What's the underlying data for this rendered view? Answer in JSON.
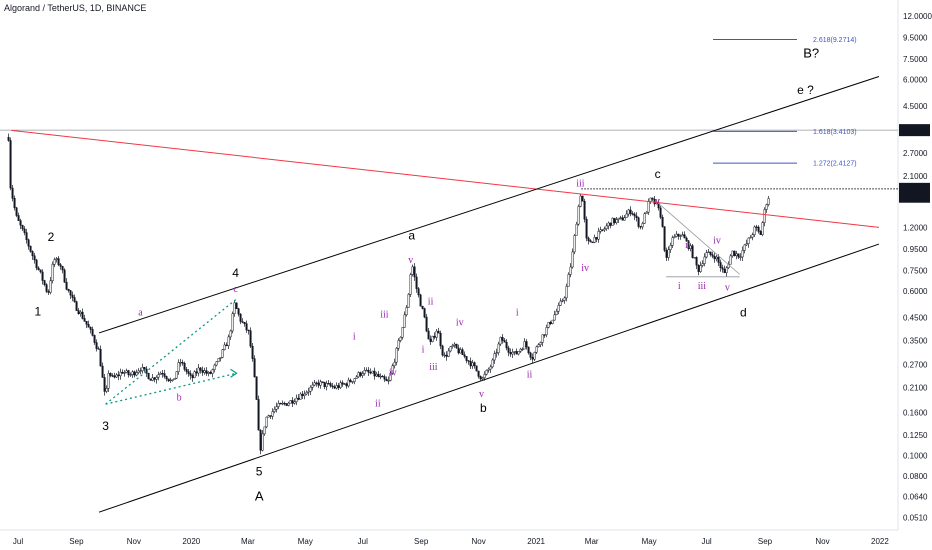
{
  "title": "Algorand / TetherUS, 1D, BINANCE",
  "chart_data": {
    "type": "candlestick",
    "symbol": "Algorand / TetherUS",
    "interval": "1D",
    "exchange": "BINANCE",
    "scale": "log",
    "ylim": [
      0.048,
      13.5
    ],
    "price_ticks": [
      "12.0000",
      "9.5000",
      "7.5000",
      "6.0000",
      "4.5000",
      "3.4569",
      "2.7000",
      "2.1000",
      "1.8243",
      "1.6745",
      "1.2000",
      "0.9500",
      "0.7500",
      "0.6000",
      "0.4500",
      "0.3500",
      "0.2700",
      "0.2100",
      "0.1600",
      "0.1250",
      "0.1000",
      "0.0800",
      "0.0640",
      "0.0510"
    ],
    "highlighted_prices": [
      {
        "label": "3.4569",
        "value": 3.4569
      },
      {
        "label": "1.8243",
        "value": 1.8243
      },
      {
        "label": "1.6745",
        "value": 1.6745
      }
    ],
    "time_ticks": [
      {
        "label": "Jul",
        "date": "2019-07-01"
      },
      {
        "label": "Sep",
        "date": "2019-09-01"
      },
      {
        "label": "Nov",
        "date": "2019-11-01"
      },
      {
        "label": "2020",
        "date": "2020-01-01"
      },
      {
        "label": "Mar",
        "date": "2020-03-01"
      },
      {
        "label": "May",
        "date": "2020-05-01"
      },
      {
        "label": "Jul",
        "date": "2020-07-01"
      },
      {
        "label": "Sep",
        "date": "2020-09-01"
      },
      {
        "label": "Nov",
        "date": "2020-11-01"
      },
      {
        "label": "2021",
        "date": "2021-01-01"
      },
      {
        "label": "Mar",
        "date": "2021-03-01"
      },
      {
        "label": "May",
        "date": "2021-05-01"
      },
      {
        "label": "Jul",
        "date": "2021-07-01"
      },
      {
        "label": "Sep",
        "date": "2021-09-01"
      },
      {
        "label": "Nov",
        "date": "2021-11-01"
      },
      {
        "label": "2022",
        "date": "2022-01-01"
      }
    ],
    "price_path": [
      [
        "2019-06-21",
        3.2
      ],
      [
        "2019-06-22",
        2.0
      ],
      [
        "2019-06-29",
        1.35
      ],
      [
        "2019-07-08",
        1.1
      ],
      [
        "2019-07-18",
        0.85
      ],
      [
        "2019-07-26",
        0.7
      ],
      [
        "2019-08-02",
        0.58
      ],
      [
        "2019-08-08",
        0.85
      ],
      [
        "2019-08-15",
        0.8
      ],
      [
        "2019-08-22",
        0.62
      ],
      [
        "2019-08-30",
        0.52
      ],
      [
        "2019-09-08",
        0.45
      ],
      [
        "2019-09-18",
        0.37
      ],
      [
        "2019-09-25",
        0.31
      ],
      [
        "2019-10-02",
        0.18
      ],
      [
        "2019-10-05",
        0.25
      ],
      [
        "2019-10-10",
        0.23
      ],
      [
        "2019-10-20",
        0.25
      ],
      [
        "2019-10-28",
        0.24
      ],
      [
        "2019-11-08",
        0.26
      ],
      [
        "2019-11-20",
        0.23
      ],
      [
        "2019-12-01",
        0.25
      ],
      [
        "2019-12-12",
        0.22
      ],
      [
        "2019-12-20",
        0.28
      ],
      [
        "2020-01-01",
        0.23
      ],
      [
        "2020-01-10",
        0.26
      ],
      [
        "2020-01-20",
        0.24
      ],
      [
        "2020-01-30",
        0.28
      ],
      [
        "2020-02-10",
        0.36
      ],
      [
        "2020-02-16",
        0.52
      ],
      [
        "2020-02-22",
        0.44
      ],
      [
        "2020-03-02",
        0.38
      ],
      [
        "2020-03-07",
        0.26
      ],
      [
        "2020-03-12",
        0.15
      ],
      [
        "2020-03-13",
        0.1
      ],
      [
        "2020-03-20",
        0.15
      ],
      [
        "2020-04-01",
        0.17
      ],
      [
        "2020-04-15",
        0.18
      ],
      [
        "2020-05-01",
        0.2
      ],
      [
        "2020-05-15",
        0.22
      ],
      [
        "2020-06-01",
        0.21
      ],
      [
        "2020-06-15",
        0.22
      ],
      [
        "2020-07-01",
        0.25
      ],
      [
        "2020-07-15",
        0.24
      ],
      [
        "2020-07-28",
        0.22
      ],
      [
        "2020-08-05",
        0.3
      ],
      [
        "2020-08-12",
        0.4
      ],
      [
        "2020-08-18",
        0.55
      ],
      [
        "2020-08-22",
        0.82
      ],
      [
        "2020-08-27",
        0.62
      ],
      [
        "2020-09-05",
        0.44
      ],
      [
        "2020-09-10",
        0.33
      ],
      [
        "2020-09-18",
        0.4
      ],
      [
        "2020-09-25",
        0.29
      ],
      [
        "2020-10-05",
        0.33
      ],
      [
        "2020-10-15",
        0.3
      ],
      [
        "2020-10-25",
        0.27
      ],
      [
        "2020-11-05",
        0.23
      ],
      [
        "2020-11-15",
        0.27
      ],
      [
        "2020-11-25",
        0.36
      ],
      [
        "2020-12-02",
        0.32
      ],
      [
        "2020-12-10",
        0.3
      ],
      [
        "2020-12-20",
        0.34
      ],
      [
        "2020-12-28",
        0.29
      ],
      [
        "2021-01-05",
        0.35
      ],
      [
        "2021-01-15",
        0.42
      ],
      [
        "2021-01-25",
        0.5
      ],
      [
        "2021-02-01",
        0.58
      ],
      [
        "2021-02-08",
        0.85
      ],
      [
        "2021-02-14",
        1.4
      ],
      [
        "2021-02-18",
        1.82
      ],
      [
        "2021-02-24",
        1.0
      ],
      [
        "2021-03-02",
        1.05
      ],
      [
        "2021-03-12",
        1.15
      ],
      [
        "2021-03-22",
        1.28
      ],
      [
        "2021-04-01",
        1.3
      ],
      [
        "2021-04-12",
        1.45
      ],
      [
        "2021-04-22",
        1.2
      ],
      [
        "2021-05-02",
        1.62
      ],
      [
        "2021-05-08",
        1.55
      ],
      [
        "2021-05-14",
        1.35
      ],
      [
        "2021-05-19",
        0.82
      ],
      [
        "2021-05-25",
        1.05
      ],
      [
        "2021-06-04",
        1.12
      ],
      [
        "2021-06-14",
        0.95
      ],
      [
        "2021-06-22",
        0.75
      ],
      [
        "2021-06-30",
        0.9
      ],
      [
        "2021-07-10",
        0.88
      ],
      [
        "2021-07-20",
        0.72
      ],
      [
        "2021-07-28",
        0.92
      ],
      [
        "2021-08-05",
        0.88
      ],
      [
        "2021-08-15",
        1.05
      ],
      [
        "2021-08-22",
        1.2
      ],
      [
        "2021-08-27",
        1.1
      ],
      [
        "2021-09-02",
        1.55
      ],
      [
        "2021-09-05",
        1.68
      ]
    ],
    "wave_labels": [
      {
        "text": "1",
        "date": "2019-07-22",
        "price": 0.48,
        "style": "mid"
      },
      {
        "text": "2",
        "date": "2019-08-05",
        "price": 1.08,
        "style": "mid"
      },
      {
        "text": "3",
        "date": "2019-10-02",
        "price": 0.138,
        "style": "mid"
      },
      {
        "text": "4",
        "date": "2020-02-17",
        "price": 0.73,
        "style": "mid"
      },
      {
        "text": "5",
        "date": "2020-03-13",
        "price": 0.084,
        "style": "mid"
      },
      {
        "text": "A",
        "date": "2020-03-13",
        "price": 0.064,
        "style": "big"
      },
      {
        "text": "a",
        "date": "2020-08-22",
        "price": 1.1,
        "style": "mid"
      },
      {
        "text": "b",
        "date": "2020-11-06",
        "price": 0.168,
        "style": "mid"
      },
      {
        "text": "c",
        "date": "2021-05-10",
        "price": 2.15,
        "style": "mid"
      },
      {
        "text": "d",
        "date": "2021-08-09",
        "price": 0.475,
        "style": "mid"
      },
      {
        "text": "B?",
        "date": "2021-10-20",
        "price": 7.95,
        "style": "big"
      },
      {
        "text": "e ?",
        "date": "2021-10-14",
        "price": 5.35,
        "style": "mid"
      },
      {
        "text": "a",
        "date": "2019-11-08",
        "price": 0.48,
        "style": "small"
      },
      {
        "text": "b",
        "date": "2019-12-19",
        "price": 0.19,
        "style": "small"
      },
      {
        "text": "c",
        "date": "2020-02-17",
        "price": 0.62,
        "style": "small"
      },
      {
        "text": "i",
        "date": "2020-06-22",
        "price": 0.37,
        "style": "small"
      },
      {
        "text": "ii",
        "date": "2020-07-17",
        "price": 0.178,
        "style": "small"
      },
      {
        "text": "iii",
        "date": "2020-07-24",
        "price": 0.47,
        "style": "small"
      },
      {
        "text": "iv",
        "date": "2020-08-02",
        "price": 0.25,
        "style": "small"
      },
      {
        "text": "v",
        "date": "2020-08-21",
        "price": 0.85,
        "style": "small"
      },
      {
        "text": "ii",
        "date": "2020-09-11",
        "price": 0.54,
        "style": "small"
      },
      {
        "text": "i",
        "date": "2020-09-03",
        "price": 0.32,
        "style": "small"
      },
      {
        "text": "iii",
        "date": "2020-09-14",
        "price": 0.265,
        "style": "small"
      },
      {
        "text": "iv",
        "date": "2020-10-12",
        "price": 0.43,
        "style": "small"
      },
      {
        "text": "v",
        "date": "2020-11-04",
        "price": 0.198,
        "style": "small"
      },
      {
        "text": "i",
        "date": "2020-12-12",
        "price": 0.48,
        "style": "small"
      },
      {
        "text": "ii",
        "date": "2020-12-25",
        "price": 0.245,
        "style": "small"
      },
      {
        "text": "iii",
        "date": "2021-02-17",
        "price": 1.95,
        "style": "small"
      },
      {
        "text": "iv",
        "date": "2021-02-22",
        "price": 0.78,
        "style": "small"
      },
      {
        "text": "v",
        "date": "2021-05-10",
        "price": 1.62,
        "style": "small"
      },
      {
        "text": "i",
        "date": "2021-06-02",
        "price": 0.64,
        "style": "small"
      },
      {
        "text": "ii",
        "date": "2021-06-11",
        "price": 1.0,
        "style": "small"
      },
      {
        "text": "iii",
        "date": "2021-06-26",
        "price": 0.64,
        "style": "small"
      },
      {
        "text": "iv",
        "date": "2021-07-12",
        "price": 1.05,
        "style": "small"
      },
      {
        "text": "v",
        "date": "2021-07-23",
        "price": 0.63,
        "style": "small"
      }
    ],
    "fib_levels": [
      {
        "label": "2.618(9.2714)",
        "value": 9.2714
      },
      {
        "label": "1.618(3.4103)",
        "value": 3.4103
      },
      {
        "label": "1.272(2.4127)",
        "value": 2.4127
      }
    ],
    "colors": {
      "candle": "#131722",
      "resistance_line": "#f23645",
      "channel_line": "#000000",
      "triangle_line": "#089981",
      "fib_line": "#3d56c4",
      "wave_small": "#9c27b0",
      "axis_label_bg": "#131722",
      "axis_label_text": "#ffffff"
    }
  }
}
